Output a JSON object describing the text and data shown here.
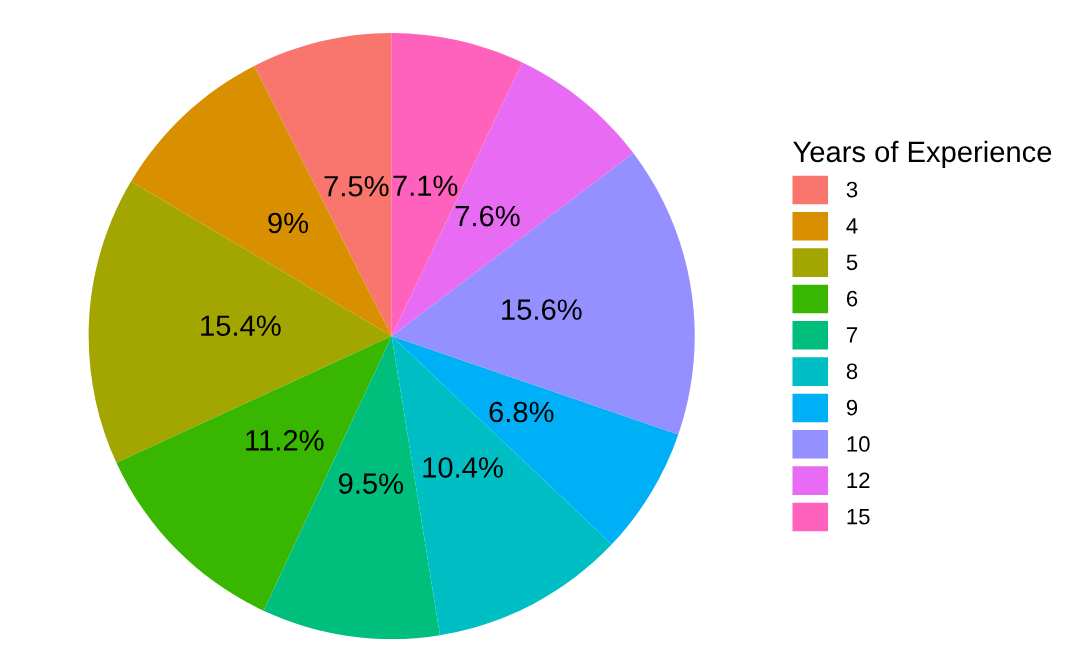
{
  "chart_data": {
    "type": "pie",
    "legend_title": "Years of Experience",
    "categories": [
      "3",
      "4",
      "5",
      "6",
      "7",
      "8",
      "9",
      "10",
      "12",
      "15"
    ],
    "values": [
      7.5,
      9,
      15.4,
      11.2,
      9.5,
      10.4,
      6.8,
      15.6,
      7.6,
      7.1
    ],
    "value_labels": [
      "7.5%",
      "9%",
      "15.4%",
      "11.2%",
      "9.5%",
      "10.4%",
      "6.8%",
      "15.6%",
      "7.6%",
      "7.1%"
    ],
    "colors": [
      "#f8766d",
      "#d89000",
      "#a3a500",
      "#39b600",
      "#00bf7d",
      "#00bfc4",
      "#00b0f6",
      "#9590ff",
      "#e76bf3",
      "#ff62bc"
    ],
    "legend": "right"
  }
}
